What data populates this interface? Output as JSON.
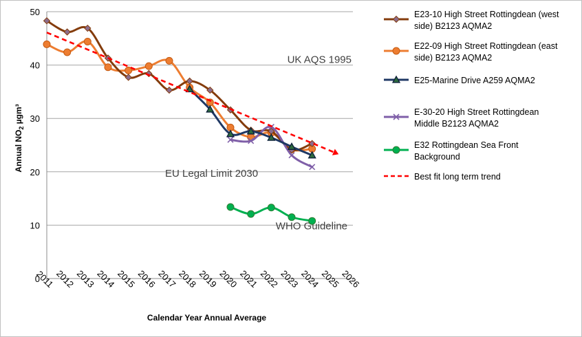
{
  "chart_data": {
    "type": "line",
    "title": "",
    "xlabel": "Calendar Year Annual Average",
    "ylabel": "Annual NO₂ µgm³",
    "ylabel_main": "Annual NO",
    "ylabel_sub": "2",
    "ylabel_unit": " µgm³",
    "xlim": [
      2011,
      2026
    ],
    "ylim": [
      0,
      50
    ],
    "x_ticks": [
      2011,
      2012,
      2013,
      2014,
      2015,
      2016,
      2017,
      2018,
      2019,
      2020,
      2021,
      2022,
      2023,
      2024,
      2025,
      2026
    ],
    "y_ticks": [
      0,
      10,
      20,
      30,
      40,
      50
    ],
    "grid": true,
    "legend_position": "right",
    "series": [
      {
        "name": "E23-10 High Street Rottingdean (west side) B2123 AQMA2",
        "legend_lines": [
          "E23-10 High Street Rottingdean (west",
          "side) B2123 AQMA2"
        ],
        "color": "#843C0C",
        "marker": "diamond",
        "x": [
          2011,
          2012,
          2013,
          2014,
          2015,
          2016,
          2017,
          2018,
          2019,
          2020,
          2021,
          2022,
          2023,
          2024
        ],
        "values": [
          48.3,
          46.2,
          46.9,
          41.3,
          37.7,
          38.4,
          35.3,
          37.0,
          35.3,
          31.6,
          27.8,
          27.6,
          24.1,
          25.3
        ]
      },
      {
        "name": "E22-09 High Street Rottingdean (east side) B2123 AQMA2",
        "legend_lines": [
          "E22-09 High Street Rottingdean (east",
          "side) B2123 AQMA2"
        ],
        "color": "#ED7D31",
        "marker": "circle",
        "x": [
          2011,
          2012,
          2013,
          2014,
          2015,
          2016,
          2017,
          2018,
          2019,
          2020,
          2021,
          2022,
          2023,
          2024
        ],
        "values": [
          43.9,
          42.4,
          44.4,
          39.6,
          39.0,
          39.8,
          40.8,
          35.8,
          33.0,
          28.3,
          26.5,
          27.3,
          24.2,
          24.3
        ]
      },
      {
        "name": "E25-Marine Drive A259 AQMA2",
        "legend_lines": [
          "E25-Marine Drive A259 AQMA2"
        ],
        "color": "#1F3864",
        "marker": "triangle",
        "x": [
          2018,
          2019,
          2020,
          2021,
          2022,
          2023,
          2024
        ],
        "values": [
          35.5,
          31.7,
          27.1,
          27.6,
          26.4,
          24.7,
          23.1
        ]
      },
      {
        "name": "E-30-20 High Street Rottingdean Middle B2123 AQMA2",
        "legend_lines": [
          "E-30-20 High Street Rottingdean",
          "Middle B2123 AQMA2"
        ],
        "color": "#7F5FA8",
        "marker": "x",
        "x": [
          2020,
          2021,
          2022,
          2023,
          2024
        ],
        "values": [
          26.0,
          25.8,
          28.4,
          23.1,
          20.9
        ]
      },
      {
        "name": "E32 Rottingdean Sea Front Background",
        "legend_lines": [
          "E32 Rottingdean Sea Front",
          "Background"
        ],
        "color": "#00B050",
        "marker": "circle",
        "x": [
          2020,
          2021,
          2022,
          2023,
          2024
        ],
        "values": [
          13.4,
          12.1,
          13.3,
          11.5,
          10.8
        ]
      },
      {
        "name": "Best fit long term trend",
        "legend_lines": [
          "Best fit long term trend"
        ],
        "color": "#FF0000",
        "marker": "arrow",
        "dashed": true,
        "x": [
          2011,
          2025.3
        ],
        "values": [
          46.1,
          23.3
        ]
      }
    ],
    "annotations": [
      {
        "text": "UK AQS 1995",
        "y": 40
      },
      {
        "text": "EU Legal Limit 2030",
        "y": 20
      },
      {
        "text": "WHO Guideline",
        "y": 10
      }
    ]
  }
}
